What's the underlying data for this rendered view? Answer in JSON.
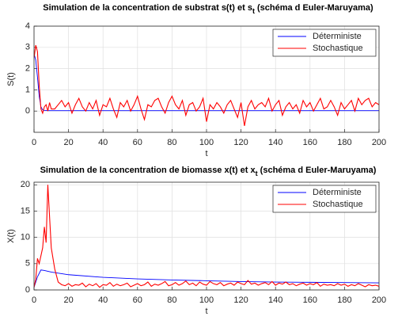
{
  "chart_data": [
    {
      "type": "line",
      "title_parts": [
        "Simulation de la concentration de substrat s(t) et s",
        "t",
        " (schéma d Euler-Maruyama)"
      ],
      "xlabel": "t",
      "ylabel": "S(t)",
      "xlim": [
        0,
        200
      ],
      "xticks": [
        0,
        20,
        40,
        60,
        80,
        100,
        120,
        140,
        160,
        180,
        200
      ],
      "ylim": [
        -1,
        4
      ],
      "yticks": [
        0,
        1,
        2,
        3,
        4
      ],
      "grid": true,
      "legend": "upper right",
      "series": [
        {
          "name": "Déterministe",
          "color": "#0000ff",
          "x": [
            0,
            1,
            2,
            3,
            4,
            5,
            6,
            8,
            10,
            200
          ],
          "values": [
            2.7,
            2.4,
            1.6,
            0.7,
            0.2,
            0.06,
            0.03,
            0.02,
            0.02,
            0.02
          ]
        },
        {
          "name": "Stochastique",
          "color": "#ff0000",
          "x": [
            0,
            1,
            2,
            3,
            4,
            5,
            6,
            7,
            8,
            9,
            10,
            12,
            14,
            16,
            18,
            20,
            22,
            24,
            26,
            28,
            30,
            32,
            34,
            36,
            38,
            40,
            42,
            44,
            46,
            48,
            50,
            52,
            54,
            56,
            58,
            60,
            62,
            64,
            66,
            68,
            70,
            72,
            74,
            76,
            78,
            80,
            82,
            84,
            86,
            88,
            90,
            92,
            94,
            96,
            98,
            100,
            102,
            104,
            106,
            108,
            110,
            112,
            114,
            116,
            118,
            120,
            122,
            124,
            126,
            128,
            130,
            132,
            134,
            136,
            138,
            140,
            142,
            144,
            146,
            148,
            150,
            152,
            154,
            156,
            158,
            160,
            162,
            164,
            166,
            168,
            170,
            172,
            174,
            176,
            178,
            180,
            182,
            184,
            186,
            188,
            190,
            192,
            194,
            196,
            198,
            200
          ],
          "values": [
            2.5,
            3.1,
            2.8,
            1.2,
            0.1,
            -0.1,
            0.2,
            0.3,
            0.0,
            0.4,
            0.1,
            0.1,
            0.3,
            0.5,
            0.2,
            0.4,
            -0.1,
            0.3,
            0.6,
            0.2,
            0.0,
            0.4,
            0.1,
            0.5,
            -0.2,
            0.3,
            0.2,
            0.6,
            0.1,
            -0.3,
            0.4,
            0.2,
            0.5,
            0.0,
            0.3,
            0.7,
            0.1,
            -0.4,
            0.3,
            0.2,
            0.5,
            0.6,
            0.2,
            -0.1,
            0.4,
            0.7,
            0.3,
            0.1,
            0.5,
            -0.2,
            0.3,
            0.4,
            0.0,
            0.2,
            0.6,
            -0.5,
            0.3,
            0.1,
            0.4,
            0.2,
            -0.1,
            0.3,
            0.5,
            0.1,
            -0.3,
            0.4,
            -0.7,
            0.2,
            0.5,
            0.1,
            0.3,
            0.4,
            0.2,
            0.6,
            0.0,
            0.3,
            0.5,
            -0.2,
            0.2,
            0.4,
            0.1,
            0.3,
            -0.1,
            0.5,
            0.2,
            0.4,
            0.0,
            0.3,
            0.6,
            0.1,
            0.2,
            0.5,
            0.2,
            -0.2,
            0.4,
            0.1,
            0.3,
            0.5,
            0.0,
            0.6,
            0.3,
            0.5,
            0.6,
            0.2,
            0.4,
            0.3
          ]
        }
      ]
    },
    {
      "type": "line",
      "title_parts": [
        "Simulation de la concentration de biomasse x(t) et x",
        "t",
        " (schéma d Euler-Maruyama)"
      ],
      "xlabel": "t",
      "ylabel": "X(t)",
      "xlim": [
        0,
        200
      ],
      "xticks": [
        0,
        20,
        40,
        60,
        80,
        100,
        120,
        140,
        160,
        180,
        200
      ],
      "ylim": [
        0,
        20.5
      ],
      "yticks": [
        0,
        5,
        10,
        15,
        20
      ],
      "grid": true,
      "legend": "upper right",
      "series": [
        {
          "name": "Déterministe",
          "color": "#0000ff",
          "x": [
            0,
            2,
            4,
            6,
            10,
            20,
            40,
            60,
            80,
            100,
            120,
            140,
            160,
            180,
            200
          ],
          "values": [
            0.5,
            2.5,
            3.8,
            3.7,
            3.4,
            2.9,
            2.4,
            2.1,
            1.9,
            1.75,
            1.6,
            1.5,
            1.45,
            1.4,
            1.35
          ]
        },
        {
          "name": "Stochastique",
          "color": "#ff0000",
          "x": [
            0,
            1,
            2,
            3,
            4,
            5,
            6,
            7,
            8,
            9,
            10,
            12,
            14,
            16,
            18,
            20,
            22,
            24,
            26,
            28,
            30,
            32,
            34,
            36,
            38,
            40,
            42,
            44,
            46,
            48,
            50,
            52,
            54,
            56,
            58,
            60,
            62,
            64,
            66,
            68,
            70,
            72,
            74,
            76,
            78,
            80,
            82,
            84,
            86,
            88,
            90,
            92,
            94,
            96,
            98,
            100,
            102,
            104,
            106,
            108,
            110,
            112,
            114,
            116,
            118,
            120,
            122,
            124,
            126,
            128,
            130,
            132,
            134,
            136,
            138,
            140,
            142,
            144,
            146,
            148,
            150,
            152,
            154,
            156,
            158,
            160,
            162,
            164,
            166,
            168,
            170,
            172,
            174,
            176,
            178,
            180,
            182,
            184,
            186,
            188,
            190,
            192,
            194,
            196,
            198,
            200
          ],
          "values": [
            0.5,
            2,
            6,
            5,
            6.5,
            8,
            12,
            9,
            20,
            14,
            8,
            4,
            1.5,
            1.0,
            0.8,
            1.2,
            0.7,
            1.0,
            0.9,
            1.3,
            0.6,
            1.1,
            0.8,
            1.2,
            0.5,
            1.0,
            0.9,
            1.4,
            0.7,
            1.1,
            0.8,
            1.0,
            1.3,
            0.6,
            0.9,
            1.2,
            0.8,
            1.0,
            1.5,
            0.7,
            1.1,
            0.9,
            1.2,
            1.6,
            0.8,
            1.0,
            1.4,
            0.9,
            1.2,
            1.7,
            1.0,
            1.3,
            0.8,
            1.5,
            1.1,
            0.9,
            1.6,
            1.2,
            1.0,
            1.4,
            0.8,
            1.1,
            1.3,
            0.9,
            1.5,
            1.2,
            1.0,
            1.8,
            1.1,
            1.3,
            0.9,
            1.2,
            1.4,
            1.0,
            1.6,
            0.9,
            1.3,
            1.1,
            1.5,
            1.0,
            1.2,
            0.8,
            1.1,
            1.3,
            0.9,
            1.2,
            1.0,
            1.4,
            0.7,
            1.1,
            0.9,
            1.0,
            0.8,
            1.2,
            0.9,
            1.1,
            0.7,
            1.0,
            0.8,
            1.2,
            0.9,
            0.6,
            1.0,
            0.8,
            0.9,
            0.7
          ]
        }
      ]
    }
  ]
}
